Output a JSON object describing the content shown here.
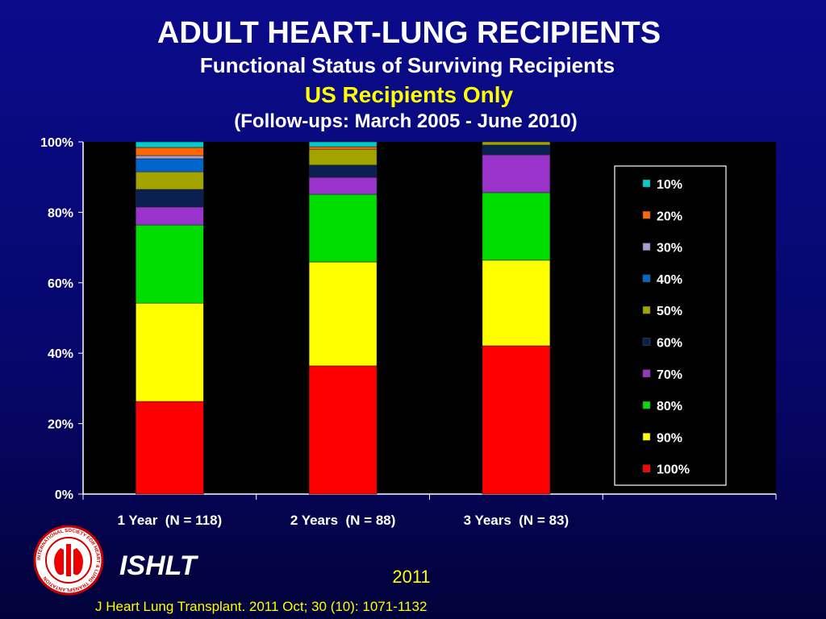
{
  "chart_data": {
    "type": "stacked_bar",
    "title": "ADULT HEART-LUNG RECIPIENTS",
    "subtitles": [
      "Functional Status of Surviving Recipients",
      "US Recipients Only",
      "(Follow-ups: March 2005 - June 2010)"
    ],
    "categories": [
      "1 Year  (N = 118)",
      "2 Years  (N = 88)",
      "3 Years  (N = 83)",
      null
    ],
    "series": [
      {
        "name": "100%",
        "color": "#ff0000",
        "values": [
          26.3,
          36.4,
          42.1,
          null
        ]
      },
      {
        "name": "90%",
        "color": "#ffff00",
        "values": [
          27.9,
          29.5,
          24.3,
          null
        ]
      },
      {
        "name": "80%",
        "color": "#00dd00",
        "values": [
          22.2,
          19.2,
          19.2,
          null
        ]
      },
      {
        "name": "70%",
        "color": "#9933cc",
        "values": [
          5.1,
          4.8,
          10.7,
          null
        ]
      },
      {
        "name": "60%",
        "color": "#0b1f50",
        "values": [
          5.0,
          3.5,
          2.8,
          null
        ]
      },
      {
        "name": "50%",
        "color": "#a3a300",
        "values": [
          5.0,
          4.5,
          0.9,
          null
        ]
      },
      {
        "name": "40%",
        "color": "#0066cc",
        "values": [
          3.7,
          0,
          0,
          null
        ]
      },
      {
        "name": "30%",
        "color": "#a0a0d8",
        "values": [
          0.9,
          0,
          0,
          null
        ]
      },
      {
        "name": "20%",
        "color": "#ff6600",
        "values": [
          2.3,
          0.7,
          0,
          null
        ]
      },
      {
        "name": "10%",
        "color": "#00cccc",
        "values": [
          1.6,
          1.4,
          0,
          null
        ]
      }
    ],
    "ylim": [
      0,
      100
    ],
    "yticks": [
      {
        "value": 0,
        "label": "0%"
      },
      {
        "value": 20,
        "label": "20%"
      },
      {
        "value": 40,
        "label": "40%"
      },
      {
        "value": 60,
        "label": "60%"
      },
      {
        "value": 80,
        "label": "80%"
      },
      {
        "value": 100,
        "label": "100%"
      }
    ],
    "legend": "right"
  },
  "logo_text": "INTERNATIONAL SOCIETY FOR HEART & LUNG TRANSPLANTATION",
  "footer": {
    "org": "ISHLT",
    "year": "2011",
    "citation": "J Heart Lung Transplant. 2011 Oct; 30 (10): 1071-1132"
  }
}
